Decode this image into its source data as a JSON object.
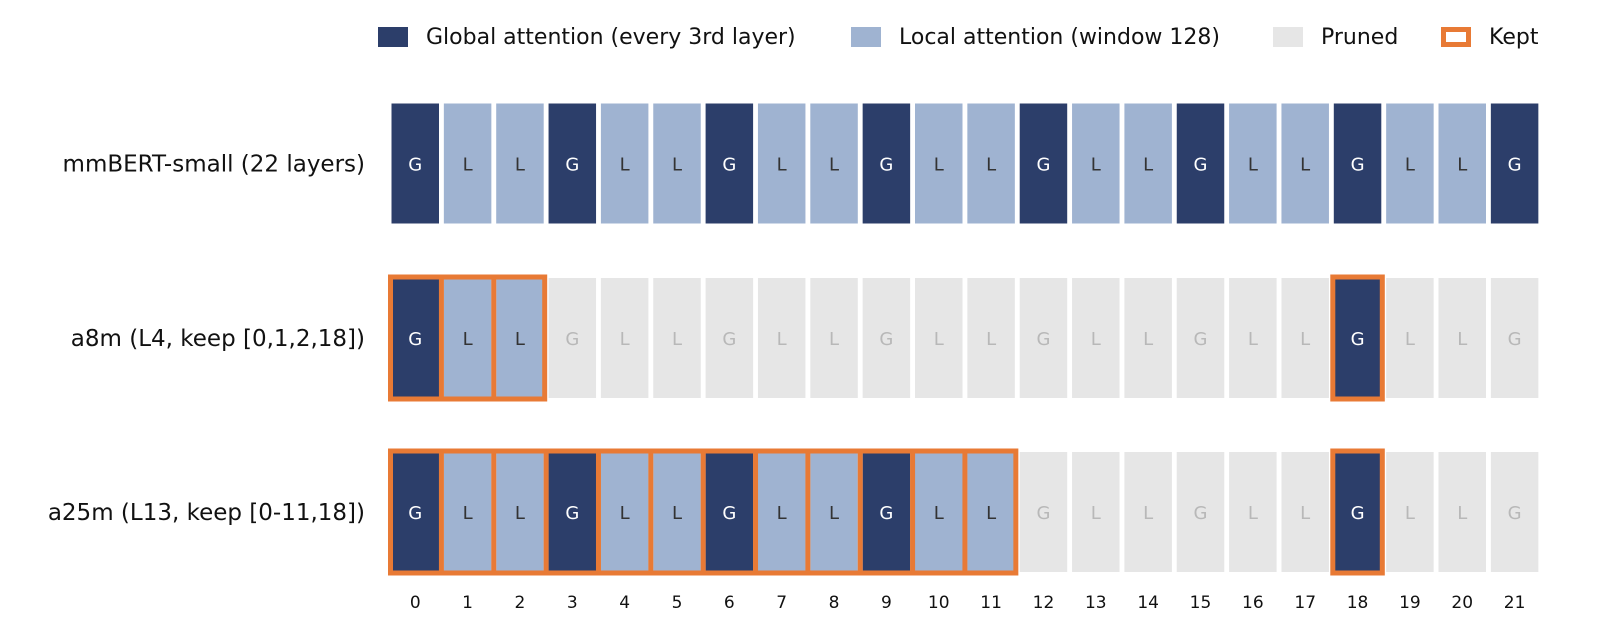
{
  "colors": {
    "global": "#2c3e6a",
    "local": "#9fb3d1",
    "pruned": "#e6e6e6",
    "kept_border": "#e87a35",
    "label_on_global": "#ffffff",
    "label_on_local": "#333333",
    "label_on_pruned": "#b8b8b8"
  },
  "legend": {
    "global_label": "Global attention (every 3rd layer)",
    "local_label": "Local attention (window 128)",
    "pruned_label": "Pruned",
    "kept_label": "Kept"
  },
  "layer_indices": [
    "0",
    "1",
    "2",
    "3",
    "4",
    "5",
    "6",
    "7",
    "8",
    "9",
    "10",
    "11",
    "12",
    "13",
    "14",
    "15",
    "16",
    "17",
    "18",
    "19",
    "20",
    "21"
  ],
  "layer_types": [
    "G",
    "L",
    "L",
    "G",
    "L",
    "L",
    "G",
    "L",
    "L",
    "G",
    "L",
    "L",
    "G",
    "L",
    "L",
    "G",
    "L",
    "L",
    "G",
    "L",
    "L",
    "G"
  ],
  "rows": [
    {
      "label": "mmBERT-small (22 layers)",
      "kept_layers": "all",
      "kept_groups": []
    },
    {
      "label": "a8m  (L4, keep [0,1,2,18])",
      "kept_layers": [
        0,
        1,
        2,
        18
      ],
      "kept_groups": [
        [
          0,
          2
        ],
        [
          18,
          18
        ]
      ]
    },
    {
      "label": "a25m  (L13, keep [0-11,18])",
      "kept_layers": [
        0,
        1,
        2,
        3,
        4,
        5,
        6,
        7,
        8,
        9,
        10,
        11,
        18
      ],
      "kept_groups": [
        [
          0,
          11
        ],
        [
          18,
          18
        ]
      ]
    }
  ]
}
